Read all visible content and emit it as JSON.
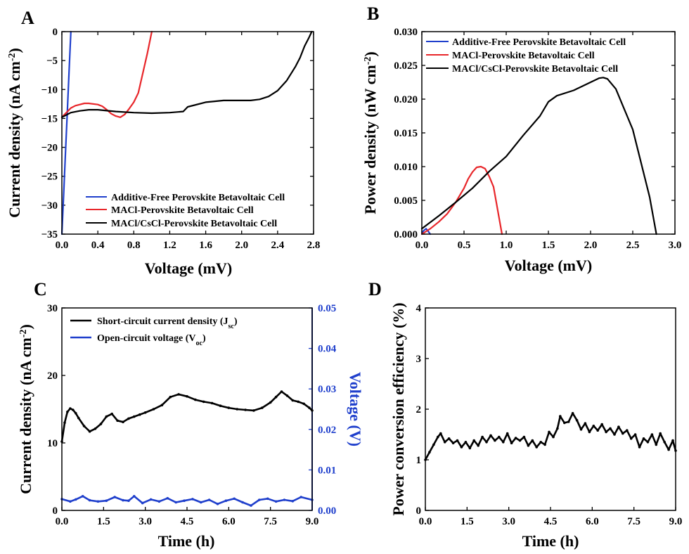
{
  "chart_data": [
    {
      "panel": "A",
      "type": "line",
      "xlabel": "Voltage (mV)",
      "ylabel_text": "Current density (nA cm",
      "ylabel_sup": "-2",
      "ylabel_close": ")",
      "xlim": [
        0,
        2.8
      ],
      "ylim": [
        -35,
        0
      ],
      "xticks": [
        0.0,
        0.4,
        0.8,
        1.2,
        1.6,
        2.0,
        2.4,
        2.8
      ],
      "xtick_labels": [
        "0.0",
        "0.4",
        "0.8",
        "1.2",
        "1.6",
        "2.0",
        "2.4",
        "2.8"
      ],
      "yticks": [
        0,
        -5,
        -10,
        -15,
        -20,
        -25,
        -30,
        -35
      ],
      "ytick_labels": [
        "0",
        "−5",
        "−10",
        "−15",
        "−20",
        "−25",
        "−30",
        "−35"
      ],
      "legend_position": "bottom-right",
      "series": [
        {
          "name": "Additive-Free Perovskite Betavoltaic Cell",
          "color": "#1f3fcc",
          "x": [
            0.0,
            0.02,
            0.04,
            0.06,
            0.08,
            0.1
          ],
          "y": [
            -35,
            -28,
            -21,
            -14,
            -7,
            0
          ]
        },
        {
          "name": "MACl-Perovskite Betavoltaic Cell",
          "color": "#e8262a",
          "x": [
            0.0,
            0.05,
            0.1,
            0.15,
            0.2,
            0.25,
            0.3,
            0.4,
            0.45,
            0.5,
            0.55,
            0.6,
            0.65,
            0.7,
            0.75,
            0.8,
            0.85,
            0.9,
            0.95,
            1.0
          ],
          "y": [
            -14.8,
            -14.0,
            -13.2,
            -12.8,
            -12.6,
            -12.4,
            -12.4,
            -12.6,
            -12.9,
            -13.5,
            -14.2,
            -14.6,
            -14.8,
            -14.3,
            -13.3,
            -12.2,
            -10.6,
            -7.2,
            -3.8,
            0
          ]
        },
        {
          "name": "MACl/CsCl-Perovskite Betavoltaic Cell",
          "color": "#000000",
          "x": [
            0.0,
            0.05,
            0.1,
            0.2,
            0.3,
            0.4,
            0.6,
            0.8,
            1.0,
            1.2,
            1.35,
            1.4,
            1.6,
            1.8,
            2.0,
            2.1,
            2.2,
            2.3,
            2.4,
            2.5,
            2.6,
            2.65,
            2.7,
            2.75,
            2.78
          ],
          "y": [
            -14.8,
            -14.4,
            -14.0,
            -13.7,
            -13.5,
            -13.5,
            -13.8,
            -14.0,
            -14.1,
            -14.0,
            -13.8,
            -13.0,
            -12.2,
            -11.9,
            -11.9,
            -11.9,
            -11.7,
            -11.2,
            -10.2,
            -8.5,
            -6.0,
            -4.5,
            -2.5,
            -1.0,
            0
          ]
        }
      ]
    },
    {
      "panel": "B",
      "type": "line",
      "xlabel": "Voltage (mV)",
      "ylabel_text": "Power density (nW cm",
      "ylabel_sup": "-2",
      "ylabel_close": ")",
      "xlim": [
        0,
        3.0
      ],
      "ylim": [
        0,
        0.03
      ],
      "xticks": [
        0.0,
        0.5,
        1.0,
        1.5,
        2.0,
        2.5,
        3.0
      ],
      "xtick_labels": [
        "0.0",
        "0.5",
        "1.0",
        "1.5",
        "2.0",
        "2.5",
        "3.0"
      ],
      "yticks": [
        0,
        0.005,
        0.01,
        0.015,
        0.02,
        0.025,
        0.03
      ],
      "ytick_labels": [
        "0.000",
        "0.005",
        "0.010",
        "0.015",
        "0.020",
        "0.025",
        "0.030"
      ],
      "legend_position": "top-left",
      "series": [
        {
          "name": "Additive-Free Perovskite Betavoltaic Cell",
          "color": "#1f3fcc",
          "x": [
            0.0,
            0.02,
            0.05,
            0.07,
            0.1
          ],
          "y": [
            0.0,
            0.0005,
            0.0008,
            0.0005,
            0.0
          ]
        },
        {
          "name": "MACl-Perovskite Betavoltaic Cell",
          "color": "#e8262a",
          "x": [
            0.0,
            0.1,
            0.2,
            0.3,
            0.4,
            0.5,
            0.55,
            0.6,
            0.65,
            0.7,
            0.75,
            0.8,
            0.85,
            0.9,
            0.95
          ],
          "y": [
            0.0,
            0.0008,
            0.0018,
            0.003,
            0.0047,
            0.0068,
            0.0082,
            0.0092,
            0.0099,
            0.01,
            0.0097,
            0.0085,
            0.007,
            0.0035,
            0.0
          ]
        },
        {
          "name": "MACl/CsCl-Perovskite Betavoltaic Cell",
          "color": "#000000",
          "x": [
            0.0,
            0.2,
            0.4,
            0.6,
            0.8,
            1.0,
            1.2,
            1.4,
            1.5,
            1.6,
            1.8,
            2.0,
            2.1,
            2.15,
            2.2,
            2.3,
            2.4,
            2.5,
            2.6,
            2.7,
            2.78
          ],
          "y": [
            0.0008,
            0.0027,
            0.0047,
            0.0068,
            0.0093,
            0.0115,
            0.0146,
            0.0175,
            0.0196,
            0.0205,
            0.0213,
            0.0225,
            0.0231,
            0.0232,
            0.023,
            0.0215,
            0.0185,
            0.0155,
            0.0105,
            0.0055,
            0.0
          ]
        }
      ]
    },
    {
      "panel": "C",
      "type": "line",
      "xlabel": "Time (h)",
      "ylabel_text": "Current density (nA cm",
      "ylabel_sup": "-2",
      "ylabel_close": ")",
      "y2label": "Voltage (V)",
      "xlim": [
        0,
        9.0
      ],
      "ylim": [
        0,
        30
      ],
      "y2lim": [
        0,
        0.05
      ],
      "xticks": [
        0,
        1.5,
        3.0,
        4.5,
        6.0,
        7.5,
        9.0
      ],
      "xtick_labels": [
        "0.0",
        "1.5",
        "3.0",
        "4.5",
        "6.0",
        "7.5",
        "9.0"
      ],
      "yticks": [
        0,
        10,
        20,
        30
      ],
      "ytick_labels": [
        "0",
        "10",
        "20",
        "30"
      ],
      "y2ticks": [
        0,
        0.01,
        0.02,
        0.03,
        0.04,
        0.05
      ],
      "y2tick_labels": [
        "0.00",
        "0.01",
        "0.02",
        "0.03",
        "0.04",
        "0.05"
      ],
      "legend_position": "top-left",
      "series": [
        {
          "name_main": "Short-circuit current density (J",
          "name_sub": "sc",
          "name_close": ")",
          "color": "#000000",
          "axis": "left",
          "x": [
            0.0,
            0.1,
            0.2,
            0.3,
            0.4,
            0.5,
            0.6,
            0.8,
            1.0,
            1.2,
            1.4,
            1.6,
            1.8,
            2.0,
            2.2,
            2.4,
            2.6,
            2.8,
            3.0,
            3.3,
            3.6,
            3.9,
            4.2,
            4.5,
            4.8,
            5.1,
            5.4,
            5.7,
            6.0,
            6.3,
            6.6,
            6.9,
            7.2,
            7.5,
            7.7,
            7.9,
            8.1,
            8.3,
            8.5,
            8.7,
            8.9,
            9.0
          ],
          "y": [
            10.2,
            13.0,
            14.6,
            15.1,
            14.9,
            14.4,
            13.7,
            12.5,
            11.7,
            12.1,
            12.8,
            13.9,
            14.3,
            13.3,
            13.1,
            13.6,
            13.9,
            14.2,
            14.5,
            15.0,
            15.6,
            16.8,
            17.2,
            16.9,
            16.4,
            16.1,
            15.9,
            15.5,
            15.2,
            15.0,
            14.9,
            14.8,
            15.2,
            16.0,
            16.8,
            17.6,
            17.0,
            16.3,
            16.1,
            15.8,
            15.2,
            14.8
          ]
        },
        {
          "name_main": "Open-circuit voltage (V",
          "name_sub": "oc",
          "name_close": ")",
          "color": "#1f3fcc",
          "axis": "right",
          "x": [
            0.0,
            0.3,
            0.5,
            0.75,
            1.0,
            1.3,
            1.6,
            1.9,
            2.2,
            2.4,
            2.6,
            2.9,
            3.2,
            3.5,
            3.8,
            4.1,
            4.4,
            4.7,
            5.0,
            5.3,
            5.6,
            5.9,
            6.2,
            6.5,
            6.8,
            7.1,
            7.4,
            7.7,
            8.0,
            8.3,
            8.6,
            9.0
          ],
          "y": [
            0.0028,
            0.0022,
            0.0027,
            0.0035,
            0.0025,
            0.0022,
            0.0024,
            0.0033,
            0.0025,
            0.0024,
            0.0035,
            0.0018,
            0.0027,
            0.0022,
            0.003,
            0.002,
            0.0024,
            0.0028,
            0.002,
            0.0026,
            0.0016,
            0.0024,
            0.0029,
            0.002,
            0.0012,
            0.0026,
            0.0029,
            0.0022,
            0.0026,
            0.0023,
            0.0033,
            0.0026
          ]
        }
      ]
    },
    {
      "panel": "D",
      "type": "line",
      "xlabel": "Time (h)",
      "ylabel": "Power conversion efficiency (%)",
      "xlim": [
        0,
        9.0
      ],
      "ylim": [
        0,
        4
      ],
      "xticks": [
        0,
        1.5,
        3.0,
        4.5,
        6.0,
        7.5,
        9.0
      ],
      "xtick_labels": [
        "0.0",
        "1.5",
        "3.0",
        "4.5",
        "6.0",
        "7.5",
        "9.0"
      ],
      "yticks": [
        0,
        1,
        2,
        3,
        4
      ],
      "ytick_labels": [
        "0",
        "1",
        "2",
        "3",
        "4"
      ],
      "series": [
        {
          "color": "#000000",
          "x": [
            0.0,
            0.15,
            0.3,
            0.45,
            0.55,
            0.7,
            0.85,
            1.0,
            1.15,
            1.3,
            1.45,
            1.6,
            1.75,
            1.9,
            2.05,
            2.2,
            2.35,
            2.5,
            2.65,
            2.8,
            2.95,
            3.1,
            3.25,
            3.4,
            3.55,
            3.7,
            3.85,
            4.0,
            4.15,
            4.3,
            4.45,
            4.6,
            4.75,
            4.85,
            5.0,
            5.15,
            5.3,
            5.45,
            5.6,
            5.75,
            5.9,
            6.05,
            6.2,
            6.35,
            6.5,
            6.65,
            6.8,
            6.95,
            7.1,
            7.25,
            7.4,
            7.55,
            7.7,
            7.85,
            8.0,
            8.15,
            8.3,
            8.45,
            8.6,
            8.75,
            8.9,
            9.0
          ],
          "y": [
            1.0,
            1.15,
            1.3,
            1.45,
            1.52,
            1.35,
            1.42,
            1.33,
            1.38,
            1.25,
            1.35,
            1.23,
            1.38,
            1.28,
            1.45,
            1.35,
            1.48,
            1.38,
            1.45,
            1.35,
            1.52,
            1.33,
            1.43,
            1.38,
            1.45,
            1.28,
            1.38,
            1.25,
            1.35,
            1.3,
            1.55,
            1.45,
            1.62,
            1.86,
            1.73,
            1.75,
            1.92,
            1.78,
            1.6,
            1.72,
            1.55,
            1.67,
            1.58,
            1.7,
            1.55,
            1.62,
            1.5,
            1.65,
            1.52,
            1.58,
            1.42,
            1.5,
            1.25,
            1.42,
            1.35,
            1.5,
            1.3,
            1.52,
            1.35,
            1.2,
            1.38,
            1.18
          ]
        }
      ]
    }
  ]
}
